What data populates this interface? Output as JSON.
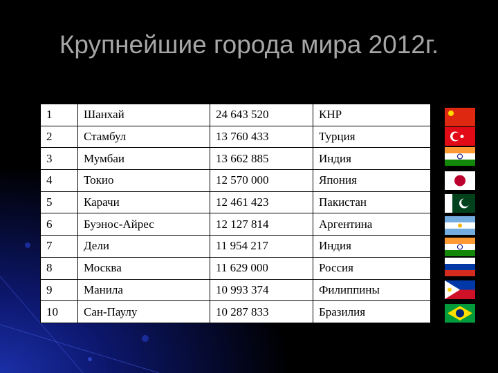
{
  "title": "Крупнейшие города мира 2012г.",
  "table": {
    "rows": [
      [
        "1",
        "Шанхай",
        "24 643 520",
        "КНР"
      ],
      [
        "2",
        "Стамбул",
        "13 760 433",
        "Турция"
      ],
      [
        "3",
        "Мумбаи",
        "13 662 885",
        "Индия"
      ],
      [
        "4",
        "Токио",
        "12 570 000",
        "Япония"
      ],
      [
        "5",
        "Карачи",
        "12 461 423",
        "Пакистан"
      ],
      [
        "6",
        "Буэнос-Айрес",
        "12 127 814",
        "Аргентина"
      ],
      [
        "7",
        "Дели",
        "11 954 217",
        "Индия"
      ],
      [
        "8",
        "Москва",
        "11 629 000",
        "Россия"
      ],
      [
        "9",
        "Манила",
        "10 993 374",
        "Филиппины"
      ],
      [
        "10",
        "Сан-Паулу",
        "10 287 833",
        "Бразилия"
      ]
    ]
  }
}
